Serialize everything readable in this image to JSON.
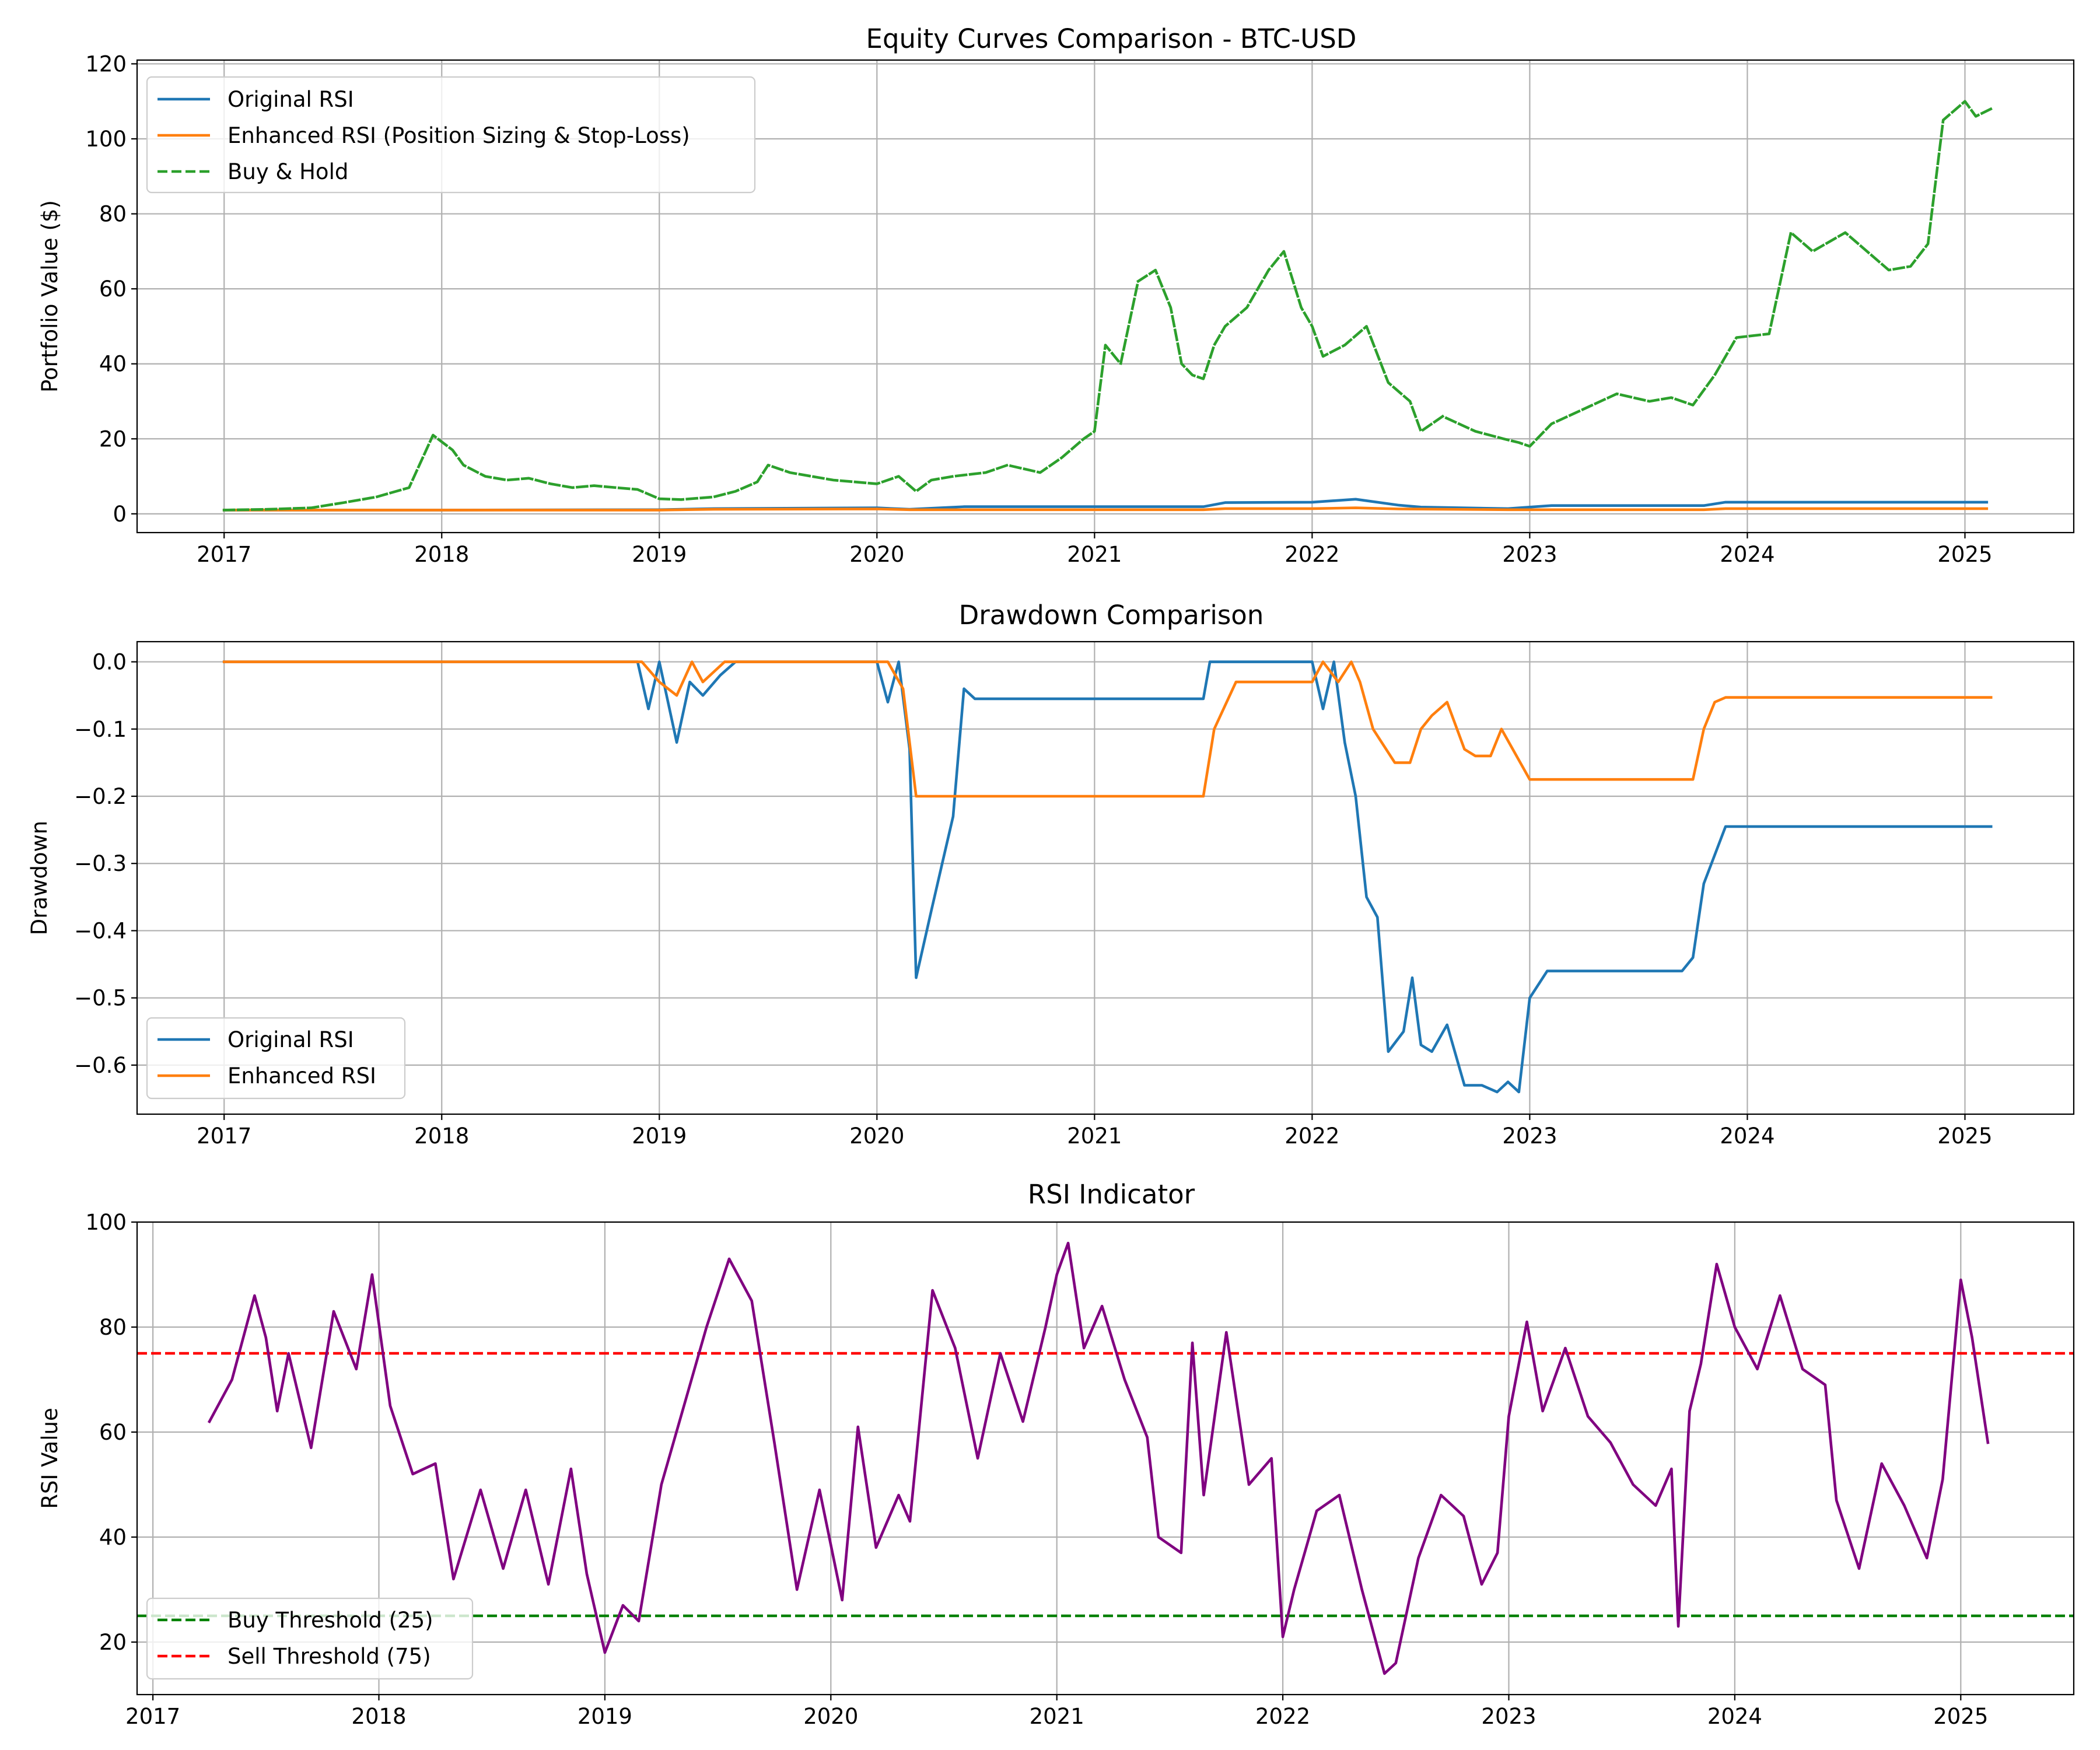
{
  "colors": {
    "original": "#1f77b4",
    "enhanced": "#ff7f0e",
    "buyhold": "#2ca02c",
    "rsi": "#800080",
    "buy_threshold": "#008000",
    "sell_threshold": "#ff0000"
  },
  "chart_data": [
    {
      "type": "line",
      "title": "Equity Curves Comparison - BTC-USD",
      "xlabel": "",
      "ylabel": "Portfolio Value ($)",
      "xlim": [
        2016.6,
        2025.5
      ],
      "ylim": [
        -5,
        121
      ],
      "xticks": [
        "2017",
        "2018",
        "2019",
        "2020",
        "2021",
        "2022",
        "2023",
        "2024",
        "2025"
      ],
      "yticks": [
        "0",
        "20",
        "40",
        "60",
        "80",
        "100",
        "120"
      ],
      "grid": true,
      "legend": "top-left",
      "series": [
        {
          "name": "Original RSI",
          "color": "#1f77b4",
          "style": "solid",
          "x": [
            2017.0,
            2018.0,
            2019.0,
            2019.25,
            2020.0,
            2020.15,
            2020.4,
            2021.0,
            2021.5,
            2021.6,
            2022.0,
            2022.2,
            2022.4,
            2022.5,
            2022.9,
            2023.1,
            2023.8,
            2023.9,
            2025.1
          ],
          "y": [
            1.0,
            1.0,
            1.1,
            1.4,
            1.6,
            1.2,
            1.9,
            1.9,
            1.9,
            3.0,
            3.1,
            3.9,
            2.3,
            1.8,
            1.4,
            2.2,
            2.2,
            3.1,
            3.1
          ]
        },
        {
          "name": "Enhanced RSI (Position Sizing & Stop-Loss)",
          "color": "#ff7f0e",
          "style": "solid",
          "x": [
            2017.0,
            2019.0,
            2019.25,
            2020.0,
            2020.15,
            2021.5,
            2021.6,
            2022.0,
            2022.2,
            2022.4,
            2022.9,
            2023.8,
            2023.9,
            2025.1
          ],
          "y": [
            1.0,
            1.0,
            1.2,
            1.3,
            1.1,
            1.1,
            1.4,
            1.4,
            1.6,
            1.3,
            1.1,
            1.1,
            1.4,
            1.4
          ]
        },
        {
          "name": "Buy & Hold",
          "color": "#2ca02c",
          "style": "dashed",
          "x": [
            2017.0,
            2017.2,
            2017.4,
            2017.55,
            2017.7,
            2017.85,
            2017.96,
            2018.05,
            2018.1,
            2018.2,
            2018.3,
            2018.4,
            2018.5,
            2018.6,
            2018.7,
            2018.8,
            2018.9,
            2019.0,
            2019.1,
            2019.25,
            2019.35,
            2019.45,
            2019.5,
            2019.6,
            2019.7,
            2019.8,
            2019.9,
            2020.0,
            2020.1,
            2020.18,
            2020.25,
            2020.35,
            2020.5,
            2020.6,
            2020.75,
            2020.85,
            2020.95,
            2021.0,
            2021.05,
            2021.12,
            2021.2,
            2021.28,
            2021.35,
            2021.4,
            2021.45,
            2021.5,
            2021.55,
            2021.6,
            2021.7,
            2021.8,
            2021.87,
            2021.95,
            2022.0,
            2022.05,
            2022.15,
            2022.25,
            2022.35,
            2022.45,
            2022.5,
            2022.6,
            2022.75,
            2022.88,
            2022.95,
            2023.0,
            2023.1,
            2023.25,
            2023.4,
            2023.55,
            2023.65,
            2023.75,
            2023.85,
            2023.95,
            2024.1,
            2024.2,
            2024.3,
            2024.45,
            2024.55,
            2024.65,
            2024.75,
            2024.83,
            2024.9,
            2025.0,
            2025.05,
            2025.12
          ],
          "y": [
            1,
            1.2,
            1.6,
            3,
            4.5,
            7,
            21,
            17,
            13,
            10,
            9,
            9.5,
            8,
            7,
            7.5,
            7,
            6.5,
            4,
            3.8,
            4.5,
            6,
            8.5,
            13,
            11,
            10,
            9,
            8.5,
            8,
            10,
            6,
            9,
            10,
            11,
            13,
            11,
            15,
            20,
            22,
            45,
            40,
            62,
            65,
            55,
            40,
            37,
            36,
            45,
            50,
            55,
            65,
            70,
            55,
            50,
            42,
            45,
            50,
            35,
            30,
            22,
            26,
            22,
            20,
            19,
            18,
            24,
            28,
            32,
            30,
            31,
            29,
            37,
            47,
            48,
            75,
            70,
            75,
            70,
            65,
            66,
            72,
            105,
            110,
            106,
            108
          ]
        }
      ]
    },
    {
      "type": "line",
      "title": "Drawdown Comparison",
      "xlabel": "",
      "ylabel": "Drawdown",
      "xlim": [
        2016.6,
        2025.5
      ],
      "ylim": [
        -0.673,
        0.03
      ],
      "xticks": [
        "2017",
        "2018",
        "2019",
        "2020",
        "2021",
        "2022",
        "2023",
        "2024",
        "2025"
      ],
      "yticks": [
        "0.0",
        "−0.1",
        "−0.2",
        "−0.3",
        "−0.4",
        "−0.5",
        "−0.6"
      ],
      "grid": true,
      "legend": "bottom-left",
      "series": [
        {
          "name": "Original RSI",
          "color": "#1f77b4",
          "style": "solid",
          "x": [
            2017.0,
            2018.9,
            2018.95,
            2019.0,
            2019.08,
            2019.14,
            2019.2,
            2019.28,
            2019.35,
            2020.0,
            2020.05,
            2020.1,
            2020.15,
            2020.18,
            2020.25,
            2020.3,
            2020.35,
            2020.4,
            2020.45,
            2021.5,
            2021.53,
            2022.0,
            2022.05,
            2022.1,
            2022.15,
            2022.2,
            2022.25,
            2022.3,
            2022.35,
            2022.42,
            2022.46,
            2022.5,
            2022.55,
            2022.62,
            2022.7,
            2022.78,
            2022.85,
            2022.9,
            2022.95,
            2023.0,
            2023.08,
            2023.7,
            2023.75,
            2023.8,
            2023.9,
            2025.12
          ],
          "y": [
            0,
            0,
            -0.07,
            0,
            -0.12,
            -0.03,
            -0.05,
            -0.02,
            0,
            0,
            -0.06,
            0,
            -0.13,
            -0.47,
            -0.37,
            -0.3,
            -0.23,
            -0.04,
            -0.055,
            -0.055,
            0,
            0,
            -0.07,
            0,
            -0.12,
            -0.2,
            -0.35,
            -0.38,
            -0.58,
            -0.55,
            -0.47,
            -0.57,
            -0.58,
            -0.54,
            -0.63,
            -0.63,
            -0.64,
            -0.625,
            -0.64,
            -0.5,
            -0.46,
            -0.46,
            -0.44,
            -0.33,
            -0.245,
            -0.245
          ]
        },
        {
          "name": "Enhanced RSI",
          "color": "#ff7f0e",
          "style": "solid",
          "x": [
            2017.0,
            2018.92,
            2019.0,
            2019.08,
            2019.15,
            2019.2,
            2019.3,
            2020.0,
            2020.05,
            2020.12,
            2020.18,
            2021.5,
            2021.55,
            2021.65,
            2022.0,
            2022.05,
            2022.12,
            2022.18,
            2022.22,
            2022.28,
            2022.38,
            2022.45,
            2022.5,
            2022.55,
            2022.62,
            2022.7,
            2022.75,
            2022.82,
            2022.87,
            2023.0,
            2023.75,
            2023.8,
            2023.85,
            2023.9,
            2025.12
          ],
          "y": [
            0,
            0,
            -0.03,
            -0.05,
            0,
            -0.03,
            0,
            0,
            0,
            -0.04,
            -0.2,
            -0.2,
            -0.1,
            -0.03,
            -0.03,
            0,
            -0.03,
            0,
            -0.03,
            -0.1,
            -0.15,
            -0.15,
            -0.1,
            -0.08,
            -0.06,
            -0.13,
            -0.14,
            -0.14,
            -0.1,
            -0.175,
            -0.175,
            -0.1,
            -0.06,
            -0.053,
            -0.053
          ]
        }
      ]
    },
    {
      "type": "line",
      "title": "RSI Indicator",
      "xlabel": "",
      "ylabel": "RSI Value",
      "xlim": [
        2016.93,
        2025.5
      ],
      "ylim": [
        10,
        100
      ],
      "xticks": [
        "2017",
        "2018",
        "2019",
        "2020",
        "2021",
        "2022",
        "2023",
        "2024",
        "2025"
      ],
      "yticks": [
        "20",
        "40",
        "60",
        "80",
        "100"
      ],
      "grid": true,
      "legend": "bottom-left",
      "thresholds": [
        {
          "name": "Buy Threshold (25)",
          "value": 25,
          "color": "#008000"
        },
        {
          "name": "Sell Threshold (75)",
          "value": 75,
          "color": "#ff0000"
        }
      ],
      "series": [
        {
          "name": "",
          "color": "#800080",
          "style": "solid",
          "x": [
            2017.25,
            2017.35,
            2017.45,
            2017.5,
            2017.55,
            2017.6,
            2017.7,
            2017.8,
            2017.9,
            2017.97,
            2018.05,
            2018.15,
            2018.25,
            2018.33,
            2018.45,
            2018.55,
            2018.65,
            2018.75,
            2018.85,
            2018.92,
            2019.0,
            2019.08,
            2019.15,
            2019.25,
            2019.35,
            2019.45,
            2019.55,
            2019.65,
            2019.75,
            2019.85,
            2019.95,
            2020.05,
            2020.12,
            2020.2,
            2020.3,
            2020.35,
            2020.45,
            2020.55,
            2020.65,
            2020.75,
            2020.85,
            2020.95,
            2021.0,
            2021.05,
            2021.12,
            2021.2,
            2021.3,
            2021.4,
            2021.45,
            2021.55,
            2021.6,
            2021.65,
            2021.75,
            2021.85,
            2021.95,
            2022.0,
            2022.05,
            2022.15,
            2022.25,
            2022.35,
            2022.45,
            2022.5,
            2022.6,
            2022.7,
            2022.8,
            2022.88,
            2022.95,
            2023.0,
            2023.08,
            2023.15,
            2023.25,
            2023.35,
            2023.45,
            2023.55,
            2023.65,
            2023.72,
            2023.75,
            2023.8,
            2023.85,
            2023.92,
            2024.0,
            2024.1,
            2024.2,
            2024.3,
            2024.4,
            2024.45,
            2024.55,
            2024.65,
            2024.75,
            2024.85,
            2024.92,
            2025.0,
            2025.05,
            2025.12
          ],
          "y": [
            62,
            70,
            86,
            78,
            64,
            75,
            57,
            83,
            72,
            90,
            65,
            52,
            54,
            32,
            49,
            34,
            49,
            31,
            53,
            33,
            18,
            27,
            24,
            50,
            65,
            80,
            93,
            85,
            58,
            30,
            49,
            28,
            61,
            38,
            48,
            43,
            87,
            76,
            55,
            75,
            62,
            80,
            90,
            96,
            76,
            84,
            70,
            59,
            40,
            37,
            77,
            48,
            79,
            50,
            55,
            21,
            30,
            45,
            48,
            30,
            14,
            16,
            36,
            48,
            44,
            31,
            37,
            63,
            81,
            64,
            76,
            63,
            58,
            50,
            46,
            53,
            23,
            64,
            73,
            92,
            80,
            72,
            86,
            72,
            69,
            47,
            34,
            54,
            46,
            36,
            51,
            89,
            78,
            58
          ]
        }
      ]
    }
  ]
}
